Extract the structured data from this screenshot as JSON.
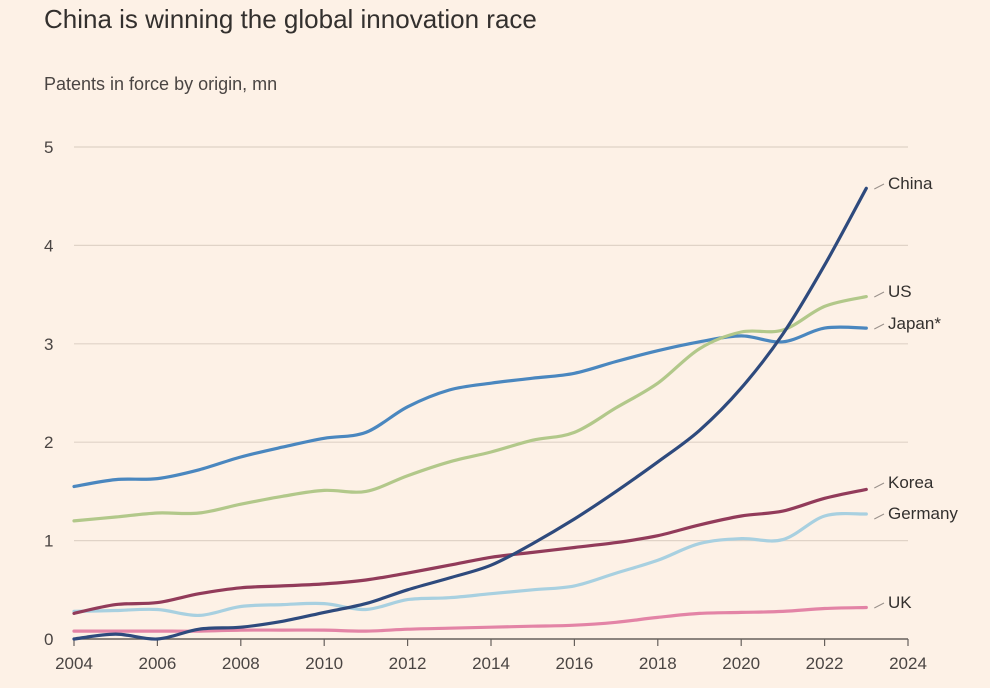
{
  "chart_data": {
    "type": "line",
    "title": "China is winning the global innovation race",
    "subtitle": "Patents in force by origin, mn",
    "xlabel": "",
    "ylabel": "",
    "xlim": [
      2004,
      2024
    ],
    "ylim": [
      0,
      5
    ],
    "x_ticks": [
      2004,
      2006,
      2008,
      2010,
      2012,
      2014,
      2016,
      2018,
      2020,
      2022,
      2024
    ],
    "y_ticks": [
      0,
      1,
      2,
      3,
      4,
      5
    ],
    "grid": true,
    "legend": "direct labels at line ends (right)",
    "x": [
      2004,
      2005,
      2006,
      2007,
      2008,
      2009,
      2010,
      2011,
      2012,
      2013,
      2014,
      2015,
      2016,
      2017,
      2018,
      2019,
      2020,
      2021,
      2022,
      2023
    ],
    "series": [
      {
        "name": "China",
        "color": "#2e4a7d",
        "values": [
          0.0,
          0.05,
          0.0,
          0.1,
          0.12,
          0.18,
          0.27,
          0.36,
          0.5,
          0.62,
          0.75,
          0.97,
          1.22,
          1.5,
          1.8,
          2.12,
          2.55,
          3.1,
          3.8,
          4.58
        ]
      },
      {
        "name": "US",
        "color": "#b2c88a",
        "values": [
          1.2,
          1.24,
          1.28,
          1.28,
          1.37,
          1.45,
          1.51,
          1.5,
          1.66,
          1.8,
          1.9,
          2.02,
          2.1,
          2.35,
          2.6,
          2.95,
          3.12,
          3.14,
          3.38,
          3.48
        ]
      },
      {
        "name": "Japan*",
        "color": "#4a87bf",
        "values": [
          1.55,
          1.62,
          1.63,
          1.72,
          1.85,
          1.95,
          2.04,
          2.1,
          2.36,
          2.53,
          2.6,
          2.65,
          2.7,
          2.82,
          2.93,
          3.02,
          3.08,
          3.02,
          3.16,
          3.16
        ]
      },
      {
        "name": "Korea",
        "color": "#923b5a",
        "values": [
          0.26,
          0.35,
          0.37,
          0.46,
          0.52,
          0.54,
          0.56,
          0.6,
          0.67,
          0.75,
          0.83,
          0.88,
          0.93,
          0.98,
          1.05,
          1.16,
          1.25,
          1.3,
          1.43,
          1.52
        ]
      },
      {
        "name": "Germany",
        "color": "#a8d0e0",
        "values": [
          0.28,
          0.29,
          0.3,
          0.24,
          0.33,
          0.35,
          0.36,
          0.3,
          0.4,
          0.42,
          0.46,
          0.5,
          0.54,
          0.67,
          0.8,
          0.97,
          1.02,
          1.01,
          1.25,
          1.27
        ]
      },
      {
        "name": "UK",
        "color": "#e384a6",
        "values": [
          0.08,
          0.08,
          0.08,
          0.08,
          0.09,
          0.09,
          0.09,
          0.08,
          0.1,
          0.11,
          0.12,
          0.13,
          0.14,
          0.17,
          0.22,
          0.26,
          0.27,
          0.28,
          0.31,
          0.32
        ]
      }
    ]
  }
}
